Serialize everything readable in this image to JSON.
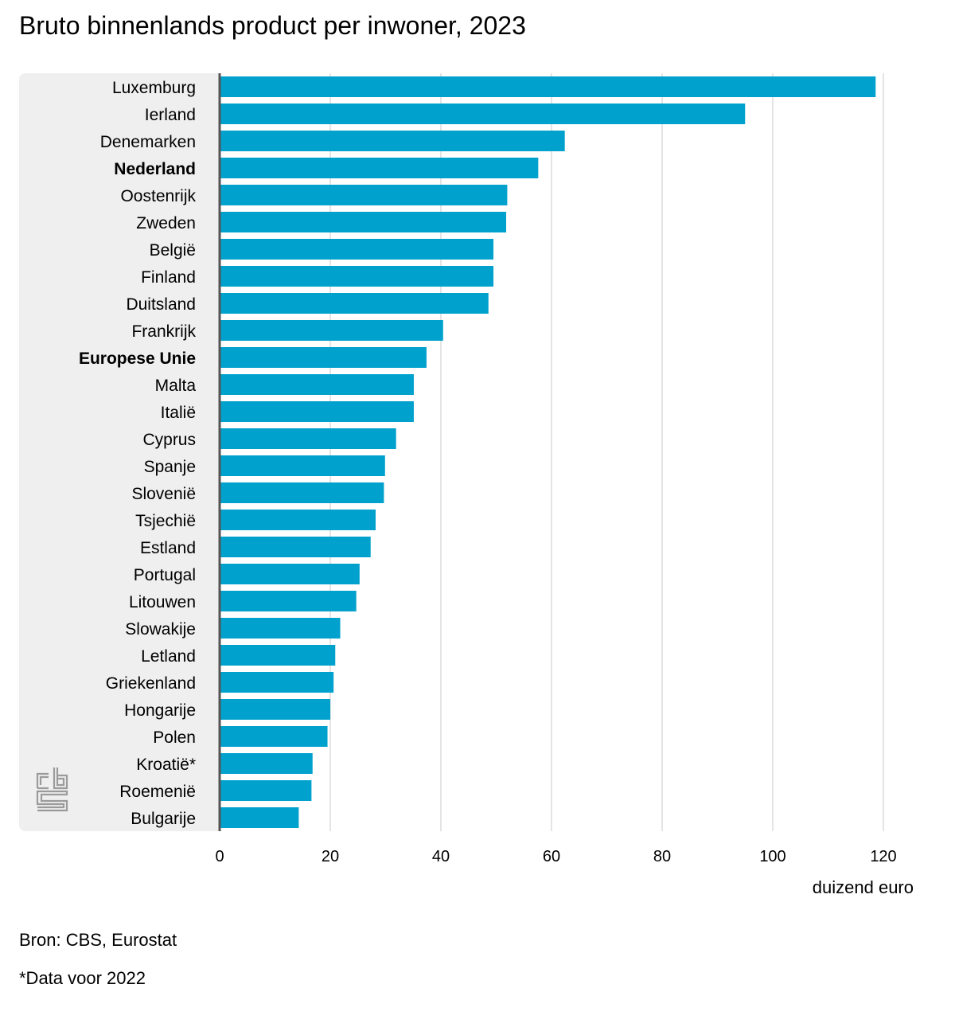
{
  "title": "Bruto binnenlands product per inwoner, 2023",
  "unit_label": "duizend euro",
  "source": "Bron: CBS, Eurostat",
  "footnote": "*Data voor 2022",
  "logo_text": "cbs",
  "colors": {
    "bar": "#00a1cd",
    "panel": "#efefef",
    "grid": "#c8c8c8",
    "axis": "#555555",
    "logo": "#9b9b9b"
  },
  "chart_data": {
    "type": "bar",
    "orientation": "horizontal",
    "categories": [
      "Luxemburg",
      "Ierland",
      "Denemarken",
      "Nederland",
      "Oostenrijk",
      "Zweden",
      "België",
      "Finland",
      "Duitsland",
      "Frankrijk",
      "Europese Unie",
      "Malta",
      "Italië",
      "Cyprus",
      "Spanje",
      "Slovenië",
      "Tsjechië",
      "Estland",
      "Portugal",
      "Litouwen",
      "Slowakije",
      "Letland",
      "Griekenland",
      "Hongarije",
      "Polen",
      "Kroatië*",
      "Roemenië",
      "Bulgarije"
    ],
    "values": [
      118.6,
      95.0,
      62.4,
      57.6,
      52.0,
      51.8,
      49.5,
      49.5,
      48.6,
      40.4,
      37.4,
      35.1,
      35.1,
      31.9,
      29.9,
      29.7,
      28.2,
      27.3,
      25.3,
      24.7,
      21.8,
      20.9,
      20.6,
      20.0,
      19.5,
      16.8,
      16.6,
      14.3
    ],
    "bold_categories": [
      "Nederland",
      "Europese Unie"
    ],
    "xlim": [
      0,
      120
    ],
    "xticks": [
      0,
      20,
      40,
      60,
      80,
      100,
      120
    ],
    "xlabel": "duizend euro",
    "grid": true
  }
}
